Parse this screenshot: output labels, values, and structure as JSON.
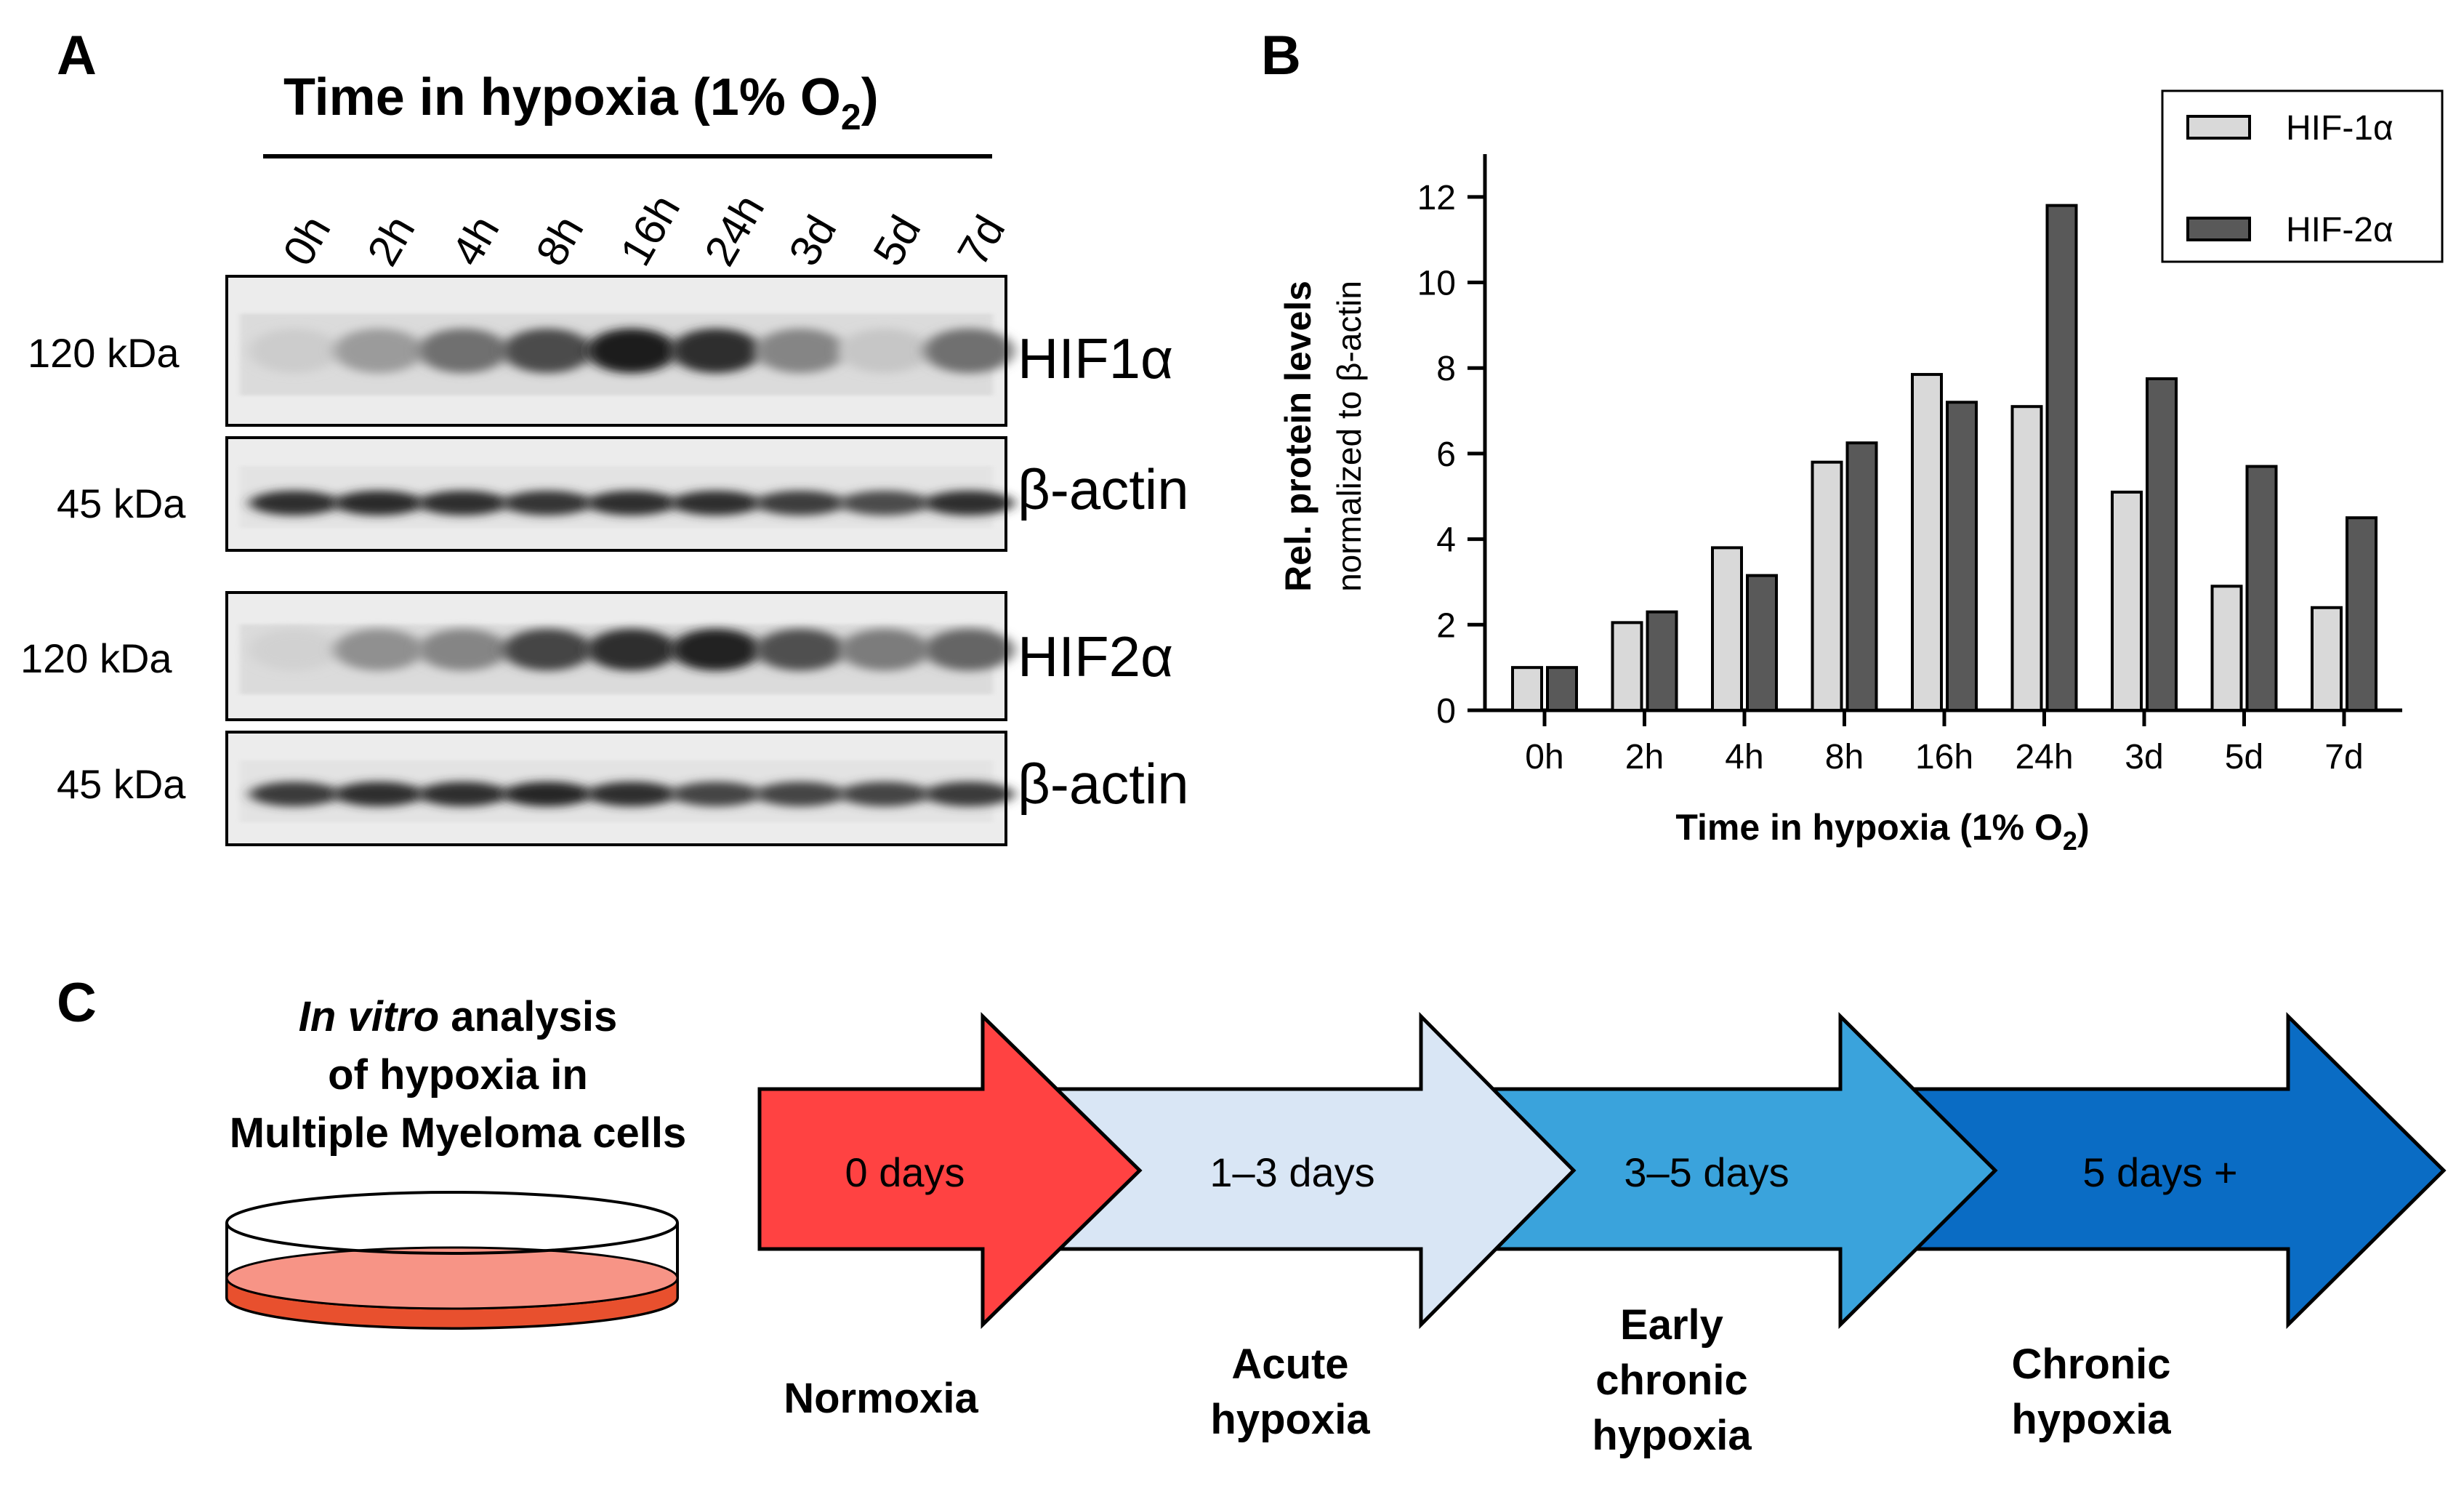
{
  "panel_a": {
    "letter": "A",
    "header_main": "Time in hypoxia (1% O",
    "header_sub": "2",
    "header_close": ")",
    "lanes": [
      "0h",
      "2h",
      "4h",
      "8h",
      "16h",
      "24h",
      "3d",
      "5d",
      "7d"
    ],
    "blots": [
      {
        "mw": "120 kDa",
        "protein": "HIF1α",
        "intensity": [
          0.12,
          0.35,
          0.55,
          0.72,
          0.95,
          0.85,
          0.45,
          0.15,
          0.55
        ]
      },
      {
        "mw": "45 kDa",
        "protein": "β-actin",
        "intensity": [
          0.85,
          0.88,
          0.85,
          0.82,
          0.85,
          0.85,
          0.78,
          0.72,
          0.85
        ]
      },
      {
        "mw": "120 kDa",
        "protein": "HIF2α",
        "intensity": [
          0.1,
          0.4,
          0.45,
          0.75,
          0.85,
          0.92,
          0.7,
          0.5,
          0.6
        ]
      },
      {
        "mw": "45 kDa",
        "protein": "β-actin",
        "intensity": [
          0.8,
          0.85,
          0.85,
          0.9,
          0.85,
          0.75,
          0.75,
          0.75,
          0.8
        ]
      }
    ]
  },
  "panel_b": {
    "letter": "B",
    "chart_data": {
      "type": "bar",
      "title": "",
      "categories": [
        "0h",
        "2h",
        "4h",
        "8h",
        "16h",
        "24h",
        "3d",
        "5d",
        "7d"
      ],
      "series": [
        {
          "name": "HIF-1α",
          "values": [
            1.0,
            2.05,
            3.8,
            5.8,
            7.85,
            7.1,
            5.1,
            2.9,
            2.4
          ],
          "color": "#d9d9d9"
        },
        {
          "name": "HIF-2α",
          "values": [
            1.0,
            2.3,
            3.15,
            6.25,
            7.2,
            11.8,
            7.75,
            5.7,
            4.5
          ],
          "color": "#595959"
        }
      ],
      "ylabel_main": "Rel. protein levels",
      "ylabel_sub": "normalized to β-actin",
      "xlabel_main": "Time in hypoxia (1% O",
      "xlabel_sub": "2",
      "xlabel_close": ")",
      "yticks": [
        "0",
        "2",
        "4",
        "6",
        "8",
        "10",
        "12"
      ],
      "ylim": [
        0,
        13
      ],
      "legend_position": "top-right",
      "grid": false
    }
  },
  "panel_c": {
    "letter": "C",
    "title_italic": "In vitro",
    "title_line1_rest": " analysis",
    "title_line2": "of hypoxia in",
    "title_line3": "Multiple Myeloma cells",
    "stages": [
      {
        "label": "0 days",
        "name_lines": [
          "Normoxia"
        ],
        "color": "#ff4242"
      },
      {
        "label": "1–3 days",
        "name_lines": [
          "Acute",
          "hypoxia"
        ],
        "color": "#d9e6f5"
      },
      {
        "label": "3–5 days",
        "name_lines": [
          "Early",
          "chronic",
          "hypoxia"
        ],
        "color": "#3aa3dc"
      },
      {
        "label": "5 days +",
        "name_lines": [
          "Chronic",
          "hypoxia"
        ],
        "color": "#0a6cc4"
      }
    ]
  }
}
